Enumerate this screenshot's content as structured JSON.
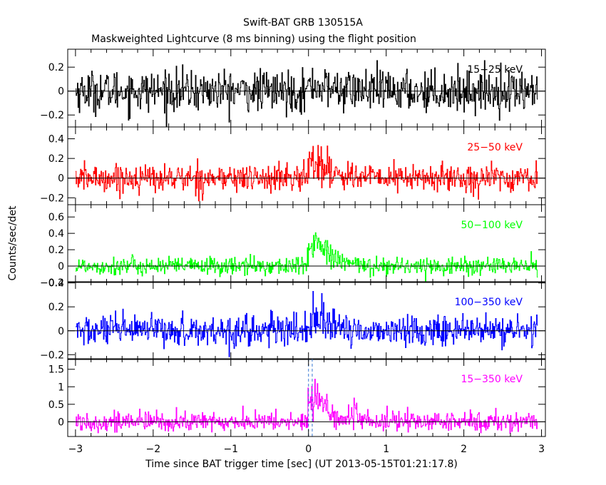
{
  "chart_data": {
    "type": "line",
    "title": "Swift-BAT GRB 130515A",
    "subtitle": "Maskweighted Lightcurve (8 ms binning) using the flight position",
    "xlabel": "Time since BAT trigger time [sec] (UT 2013-05-15T01:21:17.8)",
    "ylabel": "Counts/sec/det",
    "xlim": [
      -3.1,
      3.05
    ],
    "x_ticks": [
      -3,
      -2,
      -1,
      0,
      1,
      2,
      3
    ],
    "x_tick_labels": [
      "−3",
      "−2",
      "−1",
      "0",
      "1",
      "2",
      "3"
    ],
    "bin_width_sec": 0.008,
    "dashed_vlines": [
      0.0,
      0.048
    ],
    "panels": [
      {
        "name": "15−25 keV",
        "color": "#000000",
        "ylim": [
          -0.3,
          0.35
        ],
        "y_ticks": [
          -0.2,
          0,
          0.2
        ],
        "y_tick_labels": [
          "−0.2",
          "0",
          "0.2"
        ],
        "noise_sigma": 0.085,
        "pulse": {
          "amplitude": 0.05,
          "rise_sec": 0.02,
          "decay_sec": 0.3
        }
      },
      {
        "name": "25−50 keV",
        "color": "#ff0000",
        "ylim": [
          -0.27,
          0.52
        ],
        "y_ticks": [
          -0.2,
          0,
          0.2,
          0.4
        ],
        "y_tick_labels": [
          "−0.2",
          "0",
          "0.2",
          "0.4"
        ],
        "noise_sigma": 0.07,
        "pulse": {
          "amplitude": 0.22,
          "rise_sec": 0.02,
          "decay_sec": 0.25
        }
      },
      {
        "name": "50−100 keV",
        "color": "#00ff00",
        "ylim": [
          -0.2,
          0.75
        ],
        "y_ticks": [
          -0.2,
          0,
          0.2,
          0.4,
          0.6
        ],
        "y_tick_labels": [
          "−0.2",
          "0",
          "0.2",
          "0.4",
          "0.6"
        ],
        "noise_sigma": 0.055,
        "pulse": {
          "amplitude": 0.42,
          "rise_sec": 0.03,
          "decay_sec": 0.2
        }
      },
      {
        "name": "100−350 keV",
        "color": "#0000ff",
        "ylim": [
          -0.24,
          0.41
        ],
        "y_ticks": [
          -0.2,
          0,
          0.2,
          0.4
        ],
        "y_tick_labels": [
          "−0.2",
          "0",
          "0.2",
          "0.4"
        ],
        "noise_sigma": 0.065,
        "pulse": {
          "amplitude": 0.18,
          "rise_sec": 0.02,
          "decay_sec": 0.15
        }
      },
      {
        "name": "15−350 keV",
        "color": "#ff00ff",
        "ylim": [
          -0.42,
          1.8
        ],
        "y_ticks": [
          0,
          0.5,
          1,
          1.5
        ],
        "y_tick_labels": [
          "0",
          "0.5",
          "1",
          "1.5"
        ],
        "noise_sigma": 0.14,
        "pulse": {
          "amplitude": 0.95,
          "rise_sec": 0.025,
          "decay_sec": 0.22
        }
      }
    ]
  }
}
